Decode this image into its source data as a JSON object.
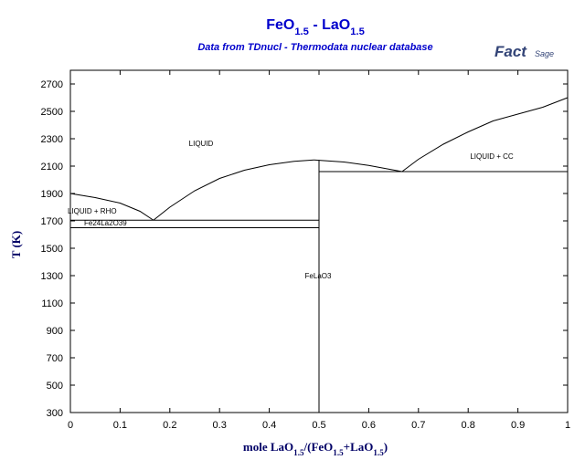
{
  "chart_data": {
    "type": "line",
    "title": [
      {
        "text": "FeO"
      },
      {
        "text": "1.5",
        "sub": true
      },
      {
        "text": " - LaO"
      },
      {
        "text": "1.5",
        "sub": true
      }
    ],
    "subtitle": "Data from TDnucl - Thermodata nuclear database",
    "logo": [
      "Fact",
      "Sage"
    ],
    "x_label": [
      {
        "text": "mole LaO"
      },
      {
        "text": "1.5",
        "sub": true
      },
      {
        "text": "/(FeO"
      },
      {
        "text": "1.5",
        "sub": true
      },
      {
        "text": "+LaO"
      },
      {
        "text": "1.5",
        "sub": true
      },
      {
        "text": ")"
      }
    ],
    "y_label": "T (K)",
    "xlim": [
      0,
      1
    ],
    "ylim": [
      300,
      2800
    ],
    "xticks": [
      0,
      0.1,
      0.2,
      0.3,
      0.4,
      0.5,
      0.6,
      0.7,
      0.8,
      0.9,
      1
    ],
    "yticks": [
      300,
      500,
      700,
      900,
      1100,
      1300,
      1500,
      1700,
      1900,
      2100,
      2300,
      2500,
      2700
    ],
    "color": "#000000",
    "series": [
      {
        "x": [
          0,
          0.05,
          0.1,
          0.14,
          0.167
        ],
        "values": [
          1900,
          1870,
          1830,
          1770,
          1705
        ]
      },
      {
        "x": [
          0.167,
          0.2,
          0.25,
          0.3,
          0.35,
          0.4,
          0.45,
          0.49
        ],
        "values": [
          1705,
          1800,
          1920,
          2010,
          2070,
          2110,
          2135,
          2145
        ]
      },
      {
        "x": [
          0.49,
          0.55,
          0.6,
          0.667
        ],
        "values": [
          2145,
          2130,
          2105,
          2060
        ]
      },
      {
        "x": [
          0.667,
          0.7,
          0.75,
          0.8,
          0.85,
          0.9,
          0.95,
          1
        ],
        "values": [
          2060,
          2150,
          2260,
          2350,
          2430,
          2480,
          2530,
          2600
        ]
      },
      {
        "x": [
          0.5,
          1
        ],
        "values": [
          2060,
          2060
        ]
      },
      {
        "x": [
          0,
          0.5
        ],
        "values": [
          1705,
          1705
        ]
      },
      {
        "x": [
          0,
          0.5
        ],
        "values": [
          1650,
          1650
        ]
      },
      {
        "x": [
          0.5,
          0.5
        ],
        "values": [
          300,
          2145
        ]
      }
    ],
    "annotations": [
      "LIQUID",
      "LIQUID + RHO",
      "Fe24La2O39",
      "FeLaO3",
      "LIQUID + CC"
    ]
  }
}
